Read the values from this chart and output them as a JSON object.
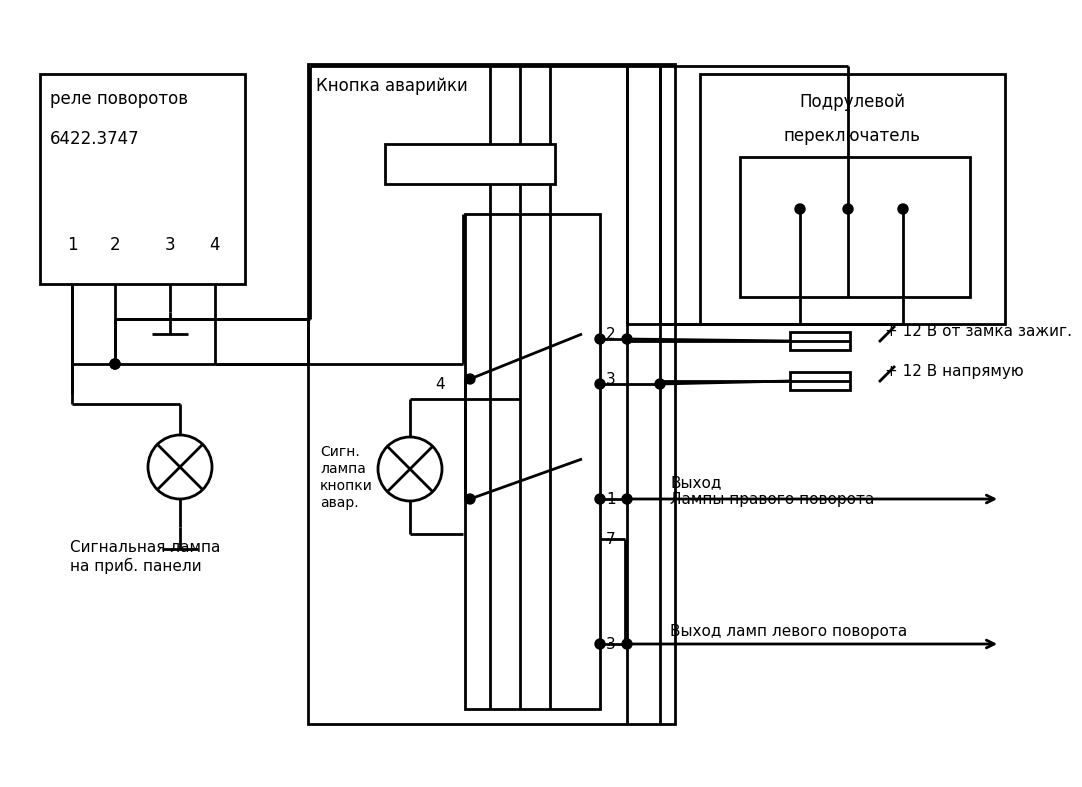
{
  "bg_color": "#ffffff",
  "lw": 2.0,
  "relay_label1": "реле поворотов",
  "relay_label2": "6422.3747",
  "relay_pins": [
    "1",
    "2",
    "3",
    "4"
  ],
  "hazard_label": "Кнопка аварийки",
  "podrul_label1": "Подрулевой",
  "podrul_label2": "переключатель",
  "label_12v_ign": "+ 12 В от замка зажиг.",
  "label_12v_direct": "+ 12 В напрямую",
  "label_right_turn1": "Выход",
  "label_right_turn2": "Лампы правого поворота",
  "label_left_turn": "Выход ламп левого поворота",
  "label_signal_lamp": "Сигнальная лампа\nна приб. панели",
  "label_sign_btn1": "Сигн.",
  "label_sign_btn2": "лампа",
  "label_sign_btn3": "кнопки",
  "label_sign_btn4": "авар.",
  "font_size": 11
}
